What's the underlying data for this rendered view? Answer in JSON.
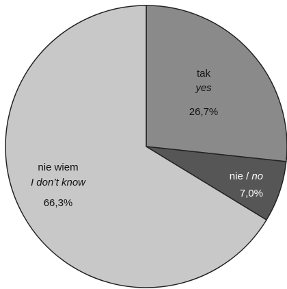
{
  "chart_data": {
    "type": "pie",
    "slices": [
      {
        "key": "tak",
        "label": "tak",
        "label_en": "yes",
        "value": 26.7,
        "value_text": "26,7%",
        "color": "#8a8a8a",
        "text_color": "#111111"
      },
      {
        "key": "nie",
        "label": "nie",
        "label_sep": " / ",
        "label_en": "no",
        "value": 7.0,
        "value_text": "7,0%",
        "color": "#565656",
        "text_color": "#ffffff"
      },
      {
        "key": "nie-wiem",
        "label": "nie wiem",
        "label_en": "I don’t know",
        "value": 66.3,
        "value_text": "66,3%",
        "color": "#c8c8c8",
        "text_color": "#111111"
      }
    ],
    "start_angle": "12 o'clock",
    "direction": "clockwise",
    "legend": "none"
  }
}
